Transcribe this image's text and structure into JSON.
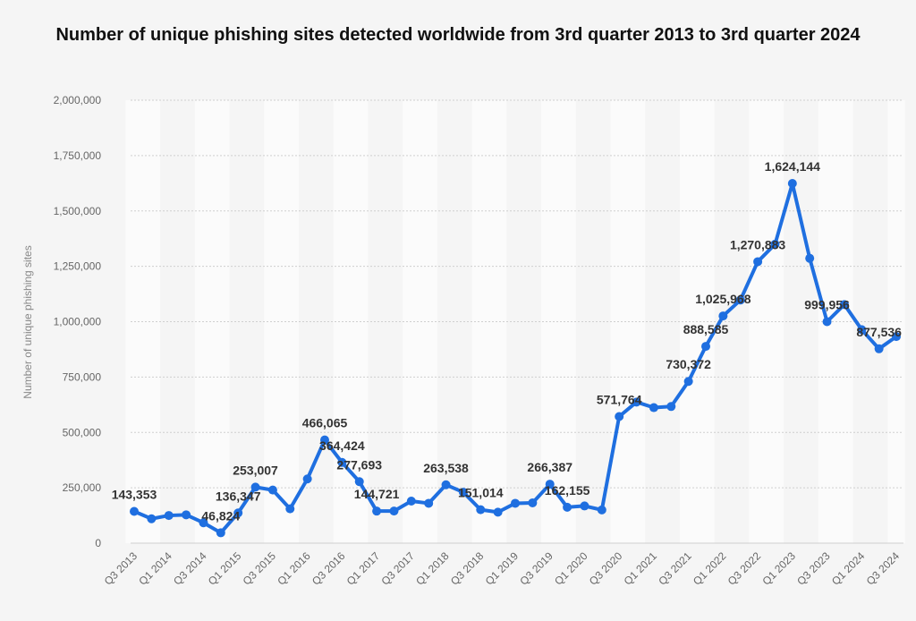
{
  "chart_data": {
    "type": "line",
    "title": "Number of unique phishing sites detected worldwide from 3rd quarter 2013 to 3rd quarter 2024",
    "xlabel": "",
    "ylabel": "Number of unique phishing sites",
    "ylim": [
      0,
      2000000
    ],
    "y_ticks": [
      "0",
      "250,000",
      "500,000",
      "750,000",
      "1,000,000",
      "1,250,000",
      "1,500,000",
      "1,750,000",
      "2,000,000"
    ],
    "y_tick_values": [
      0,
      250000,
      500000,
      750000,
      1000000,
      1250000,
      1500000,
      1750000,
      2000000
    ],
    "categories": [
      "Q3 2013",
      "Q4 2013",
      "Q1 2014",
      "Q2 2014",
      "Q3 2014",
      "Q4 2014",
      "Q1 2015",
      "Q2 2015",
      "Q3 2015",
      "Q4 2015",
      "Q1 2016",
      "Q2 2016",
      "Q3 2016",
      "Q4 2016",
      "Q1 2017",
      "Q2 2017",
      "Q3 2017",
      "Q4 2017",
      "Q1 2018",
      "Q2 2018",
      "Q3 2018",
      "Q4 2018",
      "Q1 2019",
      "Q2 2019",
      "Q3 2019",
      "Q4 2019",
      "Q1 2020",
      "Q2 2020",
      "Q3 2020",
      "Q4 2020",
      "Q1 2021",
      "Q2 2021",
      "Q3 2021",
      "Q4 2021",
      "Q1 2022",
      "Q2 2022",
      "Q3 2022",
      "Q4 2022",
      "Q1 2023",
      "Q2 2023",
      "Q3 2023",
      "Q4 2023",
      "Q1 2024",
      "Q2 2024",
      "Q3 2024"
    ],
    "x_tick_labels": [
      "Q3 2013",
      "Q1 2014",
      "Q3 2014",
      "Q1 2015",
      "Q3 2015",
      "Q1 2016",
      "Q3 2016",
      "Q1 2017",
      "Q3 2017",
      "Q1 2018",
      "Q3 2018",
      "Q1 2019",
      "Q3 2019",
      "Q1 2020",
      "Q3 2020",
      "Q1 2021",
      "Q3 2021",
      "Q1 2022",
      "Q3 2022",
      "Q1 2023",
      "Q3 2023",
      "Q1 2024",
      "Q3 2024"
    ],
    "series": [
      {
        "name": "Number of unique phishing sites",
        "color": "#1f6fe0",
        "values": [
          143353,
          110000,
          125000,
          128000,
          92000,
          46824,
          136347,
          253007,
          240000,
          155000,
          290000,
          466065,
          364424,
          277693,
          144721,
          145000,
          190000,
          180000,
          263538,
          230000,
          151014,
          140000,
          180000,
          182000,
          266387,
          162155,
          168000,
          150000,
          571764,
          637000,
          612000,
          617000,
          730372,
          888585,
          1025968,
          1097811,
          1270883,
          1350037,
          1624144,
          1286208,
          999956,
          1077501,
          963994,
          877536,
          932923
        ],
        "labels": [
          {
            "index": 0,
            "text": "143,353"
          },
          {
            "index": 5,
            "text": "46,824"
          },
          {
            "index": 6,
            "text": "136,347"
          },
          {
            "index": 7,
            "text": "253,007"
          },
          {
            "index": 11,
            "text": "466,065"
          },
          {
            "index": 12,
            "text": "364,424"
          },
          {
            "index": 13,
            "text": "277,693"
          },
          {
            "index": 14,
            "text": "144,721"
          },
          {
            "index": 18,
            "text": "263,538"
          },
          {
            "index": 20,
            "text": "151,014"
          },
          {
            "index": 24,
            "text": "266,387"
          },
          {
            "index": 25,
            "text": "162,155"
          },
          {
            "index": 28,
            "text": "571,764"
          },
          {
            "index": 32,
            "text": "730,372"
          },
          {
            "index": 33,
            "text": "888,585"
          },
          {
            "index": 34,
            "text": "1,025,968"
          },
          {
            "index": 36,
            "text": "1,270,883"
          },
          {
            "index": 38,
            "text": "1,624,144"
          },
          {
            "index": 40,
            "text": "999,956"
          },
          {
            "index": 43,
            "text": "877,536"
          }
        ]
      }
    ]
  }
}
